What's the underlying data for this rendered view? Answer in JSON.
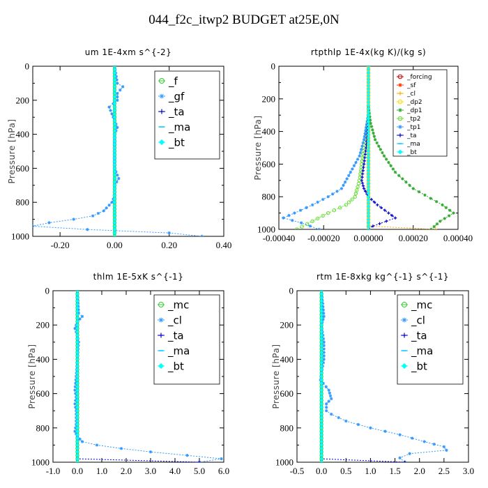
{
  "title": "044_f2c_itwp2  BUDGET at25E,0N",
  "chart_data": [
    {
      "type": "line",
      "title": "um   1E-4xm s^{-2}",
      "ylabel": "Pressure [hPa]",
      "xlim": [
        -0.3,
        0.4
      ],
      "ylim": [
        1000,
        0
      ],
      "xticks": [
        -0.2,
        0.0,
        0.2,
        0.4
      ],
      "xtick_labels": [
        "-0.20",
        "0.00",
        "0.20",
        "0.40"
      ],
      "yticks": [
        0,
        200,
        400,
        600,
        800,
        1000
      ],
      "legend_position": "top-right",
      "series": [
        {
          "name": "_f",
          "color": "#33cc33",
          "marker": "circle",
          "y": [
            0,
            100,
            200,
            300,
            400,
            500,
            600,
            700,
            800,
            900,
            1000
          ],
          "x": [
            0,
            0,
            0,
            0,
            0,
            0,
            0,
            0,
            0,
            0,
            0
          ]
        },
        {
          "name": "_gf",
          "color": "#3399ff",
          "marker": "star",
          "y": [
            0,
            100,
            120,
            140,
            160,
            200,
            240,
            280,
            320,
            360,
            400,
            450,
            500,
            550,
            600,
            660,
            700,
            760,
            800,
            850,
            880,
            900,
            920,
            940,
            960,
            980,
            1000
          ],
          "x": [
            0,
            0.01,
            0.03,
            0.02,
            0.01,
            0.01,
            -0.02,
            -0.01,
            0.0,
            0.01,
            0.0,
            0.0,
            0.0,
            0.0,
            0.0,
            0.015,
            0.0,
            0.0,
            -0.01,
            -0.04,
            -0.08,
            -0.15,
            -0.24,
            -0.3,
            -0.1,
            0.2,
            0.32
          ]
        },
        {
          "name": "_ta",
          "color": "#0000cc",
          "marker": "plus",
          "y": [
            0,
            1000
          ],
          "x": [
            0,
            0
          ]
        },
        {
          "name": "_ma",
          "color": "#00ccff",
          "marker": "dash",
          "y": [
            0,
            1000
          ],
          "x": [
            0,
            0
          ]
        },
        {
          "name": "_bt",
          "color": "#00ffff",
          "marker": "diamond",
          "y": [
            0,
            1000
          ],
          "x": [
            0,
            0
          ]
        }
      ]
    },
    {
      "type": "line",
      "title": "rtpthlp   1E-4x(kg K)/(kg s)",
      "ylabel": "Pressure [hPa]",
      "xlim": [
        -0.0004,
        0.0004
      ],
      "ylim": [
        1000,
        0
      ],
      "xticks": [
        -0.0004,
        -0.0002,
        0.0,
        0.0002,
        0.0004
      ],
      "xtick_labels": [
        "-0.00040",
        "-0.00020",
        "0.00000",
        "0.00020",
        "0.00040"
      ],
      "yticks": [
        0,
        200,
        400,
        600,
        800,
        1000
      ],
      "legend_position": "top-right",
      "series": [
        {
          "name": "_forcing",
          "color": "#cc0000",
          "marker": "circle",
          "y": [
            0,
            1000
          ],
          "x": [
            0,
            0
          ]
        },
        {
          "name": "_sf",
          "color": "#ff3300",
          "marker": "star",
          "y": [
            0,
            1000
          ],
          "x": [
            0,
            0
          ]
        },
        {
          "name": "_cl",
          "color": "#ffaa00",
          "marker": "plus",
          "y": [
            0,
            980,
            1000
          ],
          "x": [
            0,
            0,
            0.0003
          ]
        },
        {
          "name": "_dp2",
          "color": "#ffdd00",
          "marker": "circle",
          "y": [
            0,
            1000
          ],
          "x": [
            0,
            0
          ]
        },
        {
          "name": "_dp1",
          "color": "#33aa33",
          "marker": "star",
          "y": [
            250,
            350,
            450,
            550,
            650,
            750,
            850,
            900,
            950,
            1000
          ],
          "x": [
            0.0,
            1e-05,
            3e-05,
            7e-05,
            0.00012,
            0.0002,
            0.00033,
            0.00038,
            0.00032,
            0.00028
          ]
        },
        {
          "name": "_tp2",
          "color": "#66dd33",
          "marker": "circle",
          "y": [
            300,
            400,
            500,
            600,
            700,
            800,
            850,
            900,
            950,
            1000
          ],
          "x": [
            0.0,
            -1e-05,
            -2e-05,
            -3e-05,
            -4e-05,
            -6e-05,
            -0.0001,
            -0.00018,
            -0.00025,
            -0.00032
          ]
        },
        {
          "name": "_tp1",
          "color": "#3399ff",
          "marker": "star",
          "y": [
            300,
            450,
            550,
            650,
            750,
            800,
            850,
            900,
            930,
            960,
            1000
          ],
          "x": [
            0.0,
            -2e-05,
            -4e-05,
            -8e-05,
            -0.00012,
            -0.00018,
            -0.00025,
            -0.00033,
            -0.00038,
            -0.0003,
            -0.00022
          ]
        },
        {
          "name": "_ta",
          "color": "#0000cc",
          "marker": "plus",
          "y": [
            300,
            500,
            600,
            700,
            750,
            800,
            850,
            900,
            930,
            950,
            980,
            1000
          ],
          "x": [
            0.0,
            -1e-05,
            -2e-05,
            -3e-05,
            -2e-05,
            0.0,
            4e-05,
            9e-05,
            0.00012,
            8e-05,
            2e-05,
            0.0
          ]
        },
        {
          "name": "_ma",
          "color": "#00ccff",
          "marker": "dash",
          "y": [
            0,
            1000
          ],
          "x": [
            0,
            0
          ]
        },
        {
          "name": "_bt",
          "color": "#00ffff",
          "marker": "diamond",
          "y": [
            0,
            1000
          ],
          "x": [
            0,
            0
          ]
        }
      ]
    },
    {
      "type": "line",
      "title": "thlm   1E-5xK  s^{-1}",
      "ylabel": "Pressure [hPa]",
      "xlim": [
        -1.0,
        6.0
      ],
      "ylim": [
        1000,
        0
      ],
      "xticks": [
        -1.0,
        0.0,
        1.0,
        2.0,
        3.0,
        4.0,
        5.0,
        6.0
      ],
      "xtick_labels": [
        "-1.0",
        "0.0",
        "1.0",
        "2.0",
        "3.0",
        "4.0",
        "5.0",
        "6.0"
      ],
      "yticks": [
        0,
        200,
        400,
        600,
        800,
        1000
      ],
      "legend_position": "top-right",
      "series": [
        {
          "name": "_mc",
          "color": "#33cc33",
          "marker": "circle",
          "y": [
            0,
            100,
            200,
            300,
            400,
            500,
            600,
            700,
            800,
            900,
            1000
          ],
          "x": [
            0,
            0,
            0,
            0,
            0,
            0,
            0,
            0,
            0,
            0,
            0
          ]
        },
        {
          "name": "_cl",
          "color": "#3399ff",
          "marker": "star",
          "y": [
            0,
            130,
            150,
            180,
            220,
            260,
            300,
            400,
            500,
            580,
            620,
            660,
            700,
            780,
            820,
            850,
            880,
            900,
            920,
            940,
            960,
            980,
            1000
          ],
          "x": [
            0,
            0.05,
            0.2,
            0.0,
            -0.1,
            0.0,
            0.05,
            0.0,
            -0.05,
            -0.1,
            -0.05,
            -0.1,
            -0.05,
            -0.05,
            -0.1,
            0.0,
            0.2,
            0.8,
            1.8,
            3.0,
            4.5,
            5.9,
            5.0
          ]
        },
        {
          "name": "_ta",
          "color": "#0000cc",
          "marker": "plus",
          "y": [
            0,
            980,
            1000
          ],
          "x": [
            0,
            0,
            5.0
          ]
        },
        {
          "name": "_ma",
          "color": "#00ccff",
          "marker": "dash",
          "y": [
            0,
            1000
          ],
          "x": [
            0,
            0
          ]
        },
        {
          "name": "_bt",
          "color": "#00ffff",
          "marker": "diamond",
          "y": [
            0,
            1000
          ],
          "x": [
            0,
            0
          ]
        }
      ]
    },
    {
      "type": "line",
      "title": "rtm   1E-8xkg kg^{-1} s^{-1}",
      "ylabel": "Pressure [hPa]",
      "xlim": [
        -0.5,
        3.0
      ],
      "ylim": [
        1000,
        0
      ],
      "xticks": [
        -0.5,
        0.0,
        0.5,
        1.0,
        1.5,
        2.0,
        2.5,
        3.0
      ],
      "xtick_labels": [
        "-0.5",
        "0.0",
        "0.5",
        "1.0",
        "1.5",
        "2.0",
        "2.5",
        "3.0"
      ],
      "yticks": [
        0,
        200,
        400,
        600,
        800,
        1000
      ],
      "legend_position": "top-right",
      "series": [
        {
          "name": "_mc",
          "color": "#33cc33",
          "marker": "circle",
          "y": [
            0,
            100,
            200,
            300,
            400,
            500,
            600,
            700,
            800,
            900,
            1000
          ],
          "x": [
            0,
            0,
            0,
            0,
            0,
            0,
            0,
            0,
            0,
            0,
            0
          ]
        },
        {
          "name": "_cl",
          "color": "#3399ff",
          "marker": "star",
          "y": [
            0,
            150,
            200,
            300,
            400,
            480,
            520,
            580,
            630,
            660,
            700,
            720,
            760,
            800,
            840,
            880,
            910,
            930,
            950,
            975,
            1000
          ],
          "x": [
            0,
            0.05,
            0.0,
            0.05,
            0.05,
            0.0,
            -0.02,
            0.15,
            0.2,
            0.1,
            0.1,
            0.2,
            0.5,
            1.0,
            1.6,
            2.1,
            2.5,
            2.55,
            1.8,
            1.6,
            1.7
          ]
        },
        {
          "name": "_ta",
          "color": "#0000cc",
          "marker": "plus",
          "y": [
            0,
            980,
            1000
          ],
          "x": [
            0,
            0,
            1.7
          ]
        },
        {
          "name": "_ma",
          "color": "#00ccff",
          "marker": "dash",
          "y": [
            0,
            1000
          ],
          "x": [
            0,
            0
          ]
        },
        {
          "name": "_bt",
          "color": "#00ffff",
          "marker": "diamond",
          "y": [
            0,
            1000
          ],
          "x": [
            0,
            0
          ]
        }
      ]
    }
  ]
}
